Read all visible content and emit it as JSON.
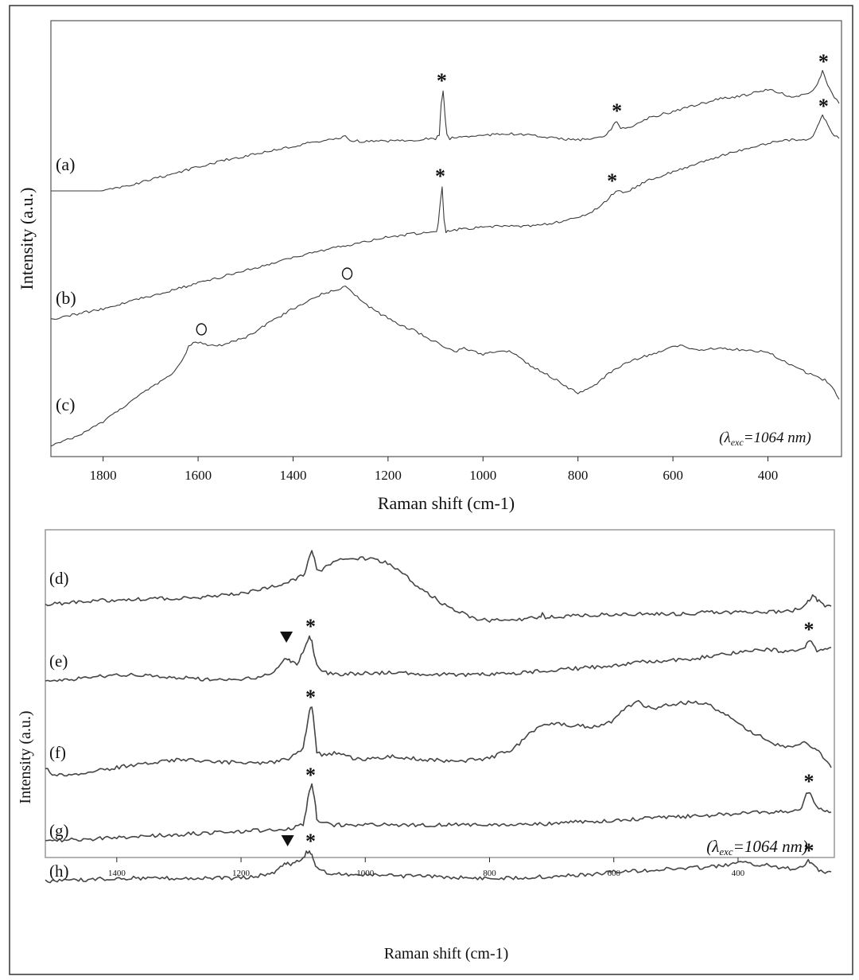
{
  "chart_data": [
    {
      "type": "line",
      "panel": "top",
      "xlabel": "Raman shift (cm-1)",
      "ylabel": "Intensity (a.u.)",
      "xlim": [
        1910,
        245
      ],
      "xticks": [
        1800,
        1600,
        1400,
        1200,
        1000,
        800,
        600,
        400
      ],
      "annotation": {
        "prefix": "(λ",
        "sub": "exc",
        "suffix": "=1064 nm)"
      },
      "series": [
        {
          "name": "(a)",
          "x": [
            1910,
            1800,
            1750,
            1700,
            1650,
            1600,
            1550,
            1500,
            1450,
            1400,
            1350,
            1300,
            1290,
            1280,
            1250,
            1200,
            1150,
            1100,
            1092,
            1088,
            1084,
            1080,
            1076,
            1070,
            1050,
            1000,
            950,
            900,
            850,
            800,
            760,
            740,
            725,
            718,
            710,
            700,
            680,
            650,
            600,
            550,
            500,
            450,
            400,
            370,
            350,
            330,
            310,
            300,
            292,
            285,
            278,
            270,
            260,
            250
          ],
          "y": [
            0,
            0,
            6,
            14,
            22,
            30,
            38,
            44,
            50,
            56,
            62,
            66,
            70,
            64,
            62,
            63,
            64,
            66,
            70,
            110,
            126,
            95,
            70,
            66,
            68,
            70,
            72,
            70,
            66,
            64,
            66,
            70,
            82,
            88,
            80,
            78,
            82,
            92,
            100,
            108,
            116,
            120,
            128,
            122,
            118,
            120,
            125,
            130,
            140,
            150,
            140,
            128,
            118,
            110
          ],
          "markers": [
            {
              "symbol": "*",
              "x": 1087
            },
            {
              "symbol": "*",
              "x": 718
            },
            {
              "symbol": "*",
              "x": 283
            }
          ]
        },
        {
          "name": "(b)",
          "x": [
            1910,
            1850,
            1800,
            1750,
            1700,
            1650,
            1600,
            1550,
            1500,
            1450,
            1400,
            1350,
            1300,
            1250,
            1200,
            1150,
            1110,
            1098,
            1094,
            1090,
            1086,
            1082,
            1078,
            1070,
            1050,
            1000,
            950,
            900,
            850,
            800,
            770,
            750,
            730,
            720,
            705,
            680,
            650,
            600,
            550,
            500,
            450,
            400,
            360,
            330,
            310,
            300,
            292,
            285,
            278,
            270,
            260,
            250
          ],
          "y": [
            0,
            8,
            14,
            22,
            30,
            38,
            46,
            54,
            62,
            70,
            78,
            86,
            92,
            98,
            104,
            108,
            110,
            112,
            122,
            146,
            168,
            125,
            110,
            112,
            114,
            116,
            118,
            118,
            122,
            128,
            136,
            144,
            156,
            162,
            160,
            166,
            176,
            186,
            196,
            206,
            214,
            222,
            226,
            226,
            228,
            236,
            248,
            256,
            250,
            240,
            232,
            228
          ],
          "markers": [
            {
              "symbol": "*",
              "x": 1090
            },
            {
              "symbol": "*",
              "x": 728
            },
            {
              "symbol": "*",
              "x": 283
            }
          ]
        },
        {
          "name": "(c)",
          "x": [
            1910,
            1850,
            1800,
            1750,
            1700,
            1650,
            1630,
            1620,
            1610,
            1600,
            1590,
            1570,
            1550,
            1500,
            1450,
            1400,
            1350,
            1300,
            1290,
            1280,
            1260,
            1230,
            1200,
            1180,
            1150,
            1100,
            1060,
            1040,
            1000,
            960,
            940,
            900,
            850,
            820,
            800,
            780,
            760,
            740,
            700,
            650,
            600,
            580,
            550,
            500,
            450,
            400,
            380,
            350,
            320,
            300,
            280,
            260,
            250
          ],
          "y": [
            0,
            12,
            30,
            52,
            72,
            92,
            112,
            124,
            128,
            130,
            128,
            126,
            126,
            136,
            154,
            172,
            188,
            198,
            200,
            196,
            184,
            170,
            160,
            152,
            146,
            130,
            118,
            122,
            114,
            120,
            118,
            100,
            84,
            72,
            66,
            70,
            78,
            88,
            104,
            114,
            124,
            126,
            120,
            122,
            120,
            118,
            110,
            100,
            92,
            88,
            82,
            70,
            58
          ],
          "markers": [
            {
              "symbol": "o",
              "x": 1593
            },
            {
              "symbol": "o",
              "x": 1286
            }
          ]
        }
      ]
    },
    {
      "type": "line",
      "panel": "bottom",
      "xlabel": "Raman shift (cm-1)",
      "ylabel": "Intensity (a.u.)",
      "xlim": [
        1515,
        245
      ],
      "xticks": [
        1400,
        1200,
        1000,
        800,
        600,
        400
      ],
      "annotation": {
        "prefix": "(λ",
        "sub": "exc",
        "suffix": "=1064 nm)"
      },
      "series": [
        {
          "name": "(d)",
          "x": [
            1515,
            1450,
            1400,
            1300,
            1250,
            1200,
            1150,
            1120,
            1100,
            1095,
            1090,
            1086,
            1082,
            1078,
            1070,
            1060,
            1040,
            1020,
            1000,
            980,
            960,
            940,
            920,
            900,
            880,
            860,
            840,
            820,
            800,
            780,
            760,
            740,
            720,
            715,
            710,
            700,
            650,
            600,
            550,
            500,
            450,
            400,
            350,
            320,
            300,
            290,
            285,
            280,
            275,
            270,
            260,
            250
          ],
          "y": [
            0,
            4,
            6,
            8,
            10,
            14,
            22,
            30,
            36,
            44,
            60,
            66,
            60,
            46,
            44,
            50,
            56,
            58,
            58,
            56,
            50,
            40,
            26,
            14,
            4,
            -6,
            -12,
            -18,
            -20,
            -20,
            -20,
            -18,
            -16,
            -12,
            -16,
            -16,
            -14,
            -12,
            -12,
            -12,
            -10,
            -10,
            -10,
            -8,
            -6,
            0,
            6,
            10,
            8,
            4,
            -2,
            -2
          ]
        },
        {
          "name": "(e)",
          "x": [
            1515,
            1450,
            1400,
            1350,
            1300,
            1250,
            1200,
            1180,
            1150,
            1140,
            1130,
            1125,
            1120,
            1110,
            1100,
            1095,
            1090,
            1086,
            1082,
            1078,
            1070,
            1060,
            1040,
            1000,
            950,
            900,
            850,
            800,
            750,
            700,
            650,
            600,
            550,
            500,
            450,
            400,
            350,
            320,
            300,
            292,
            287,
            282,
            276,
            270,
            260,
            250
          ],
          "y": [
            2,
            8,
            12,
            10,
            8,
            6,
            6,
            8,
            14,
            22,
            30,
            32,
            28,
            26,
            40,
            52,
            60,
            54,
            36,
            24,
            16,
            14,
            12,
            14,
            14,
            12,
            12,
            12,
            14,
            18,
            20,
            24,
            28,
            30,
            34,
            40,
            44,
            40,
            42,
            48,
            56,
            52,
            44,
            42,
            44,
            46
          ],
          "markers": [
            {
              "symbol": "*",
              "x": 1088
            },
            {
              "symbol": "*",
              "x": 286
            },
            {
              "symbol": "▼",
              "x": 1127
            }
          ]
        },
        {
          "name": "(f)",
          "x": [
            1515,
            1500,
            1450,
            1400,
            1350,
            1300,
            1250,
            1200,
            1150,
            1120,
            1100,
            1095,
            1090,
            1086,
            1082,
            1078,
            1070,
            1050,
            1020,
            1000,
            960,
            900,
            850,
            800,
            760,
            740,
            720,
            700,
            680,
            650,
            620,
            600,
            580,
            560,
            540,
            520,
            500,
            480,
            460,
            440,
            420,
            400,
            380,
            360,
            340,
            320,
            300,
            290,
            280,
            270,
            260,
            250
          ],
          "y": [
            10,
            0,
            4,
            10,
            16,
            20,
            18,
            16,
            16,
            22,
            34,
            58,
            82,
            86,
            62,
            30,
            26,
            28,
            22,
            20,
            24,
            20,
            18,
            22,
            34,
            50,
            62,
            66,
            64,
            62,
            62,
            70,
            86,
            92,
            84,
            88,
            90,
            92,
            92,
            86,
            78,
            64,
            56,
            48,
            40,
            36,
            40,
            42,
            34,
            30,
            20,
            10
          ],
          "markers": [
            {
              "symbol": "*",
              "x": 1088
            }
          ]
        },
        {
          "name": "(g)",
          "x": [
            1515,
            1450,
            1400,
            1300,
            1200,
            1150,
            1120,
            1100,
            1095,
            1090,
            1086,
            1082,
            1078,
            1070,
            1050,
            1000,
            950,
            900,
            850,
            800,
            750,
            700,
            650,
            600,
            550,
            500,
            450,
            400,
            350,
            320,
            300,
            295,
            290,
            286,
            282,
            278,
            270,
            260,
            250
          ],
          "y": [
            0,
            2,
            4,
            8,
            12,
            14,
            16,
            20,
            40,
            64,
            70,
            56,
            28,
            22,
            20,
            20,
            20,
            20,
            20,
            20,
            20,
            22,
            24,
            26,
            28,
            30,
            32,
            34,
            36,
            36,
            38,
            48,
            58,
            62,
            58,
            48,
            40,
            36,
            36
          ],
          "markers": [
            {
              "symbol": "*",
              "x": 1088
            },
            {
              "symbol": "*",
              "x": 286
            }
          ]
        },
        {
          "name": "(h)",
          "x": [
            1515,
            1450,
            1400,
            1300,
            1250,
            1200,
            1180,
            1150,
            1140,
            1130,
            1125,
            1120,
            1110,
            1100,
            1095,
            1090,
            1086,
            1082,
            1078,
            1070,
            1050,
            1000,
            900,
            800,
            700,
            650,
            600,
            550,
            500,
            450,
            420,
            400,
            380,
            350,
            320,
            300,
            292,
            287,
            282,
            276,
            270,
            260,
            250
          ],
          "y": [
            0,
            2,
            4,
            4,
            4,
            4,
            6,
            10,
            16,
            22,
            24,
            22,
            24,
            30,
            36,
            38,
            34,
            24,
            16,
            12,
            10,
            8,
            6,
            4,
            6,
            8,
            12,
            14,
            16,
            18,
            20,
            24,
            22,
            20,
            16,
            18,
            22,
            26,
            24,
            18,
            14,
            12,
            12
          ],
          "markers": [
            {
              "symbol": "*",
              "x": 1088
            },
            {
              "symbol": "*",
              "x": 286
            },
            {
              "symbol": "▼",
              "x": 1125
            }
          ]
        }
      ]
    }
  ]
}
